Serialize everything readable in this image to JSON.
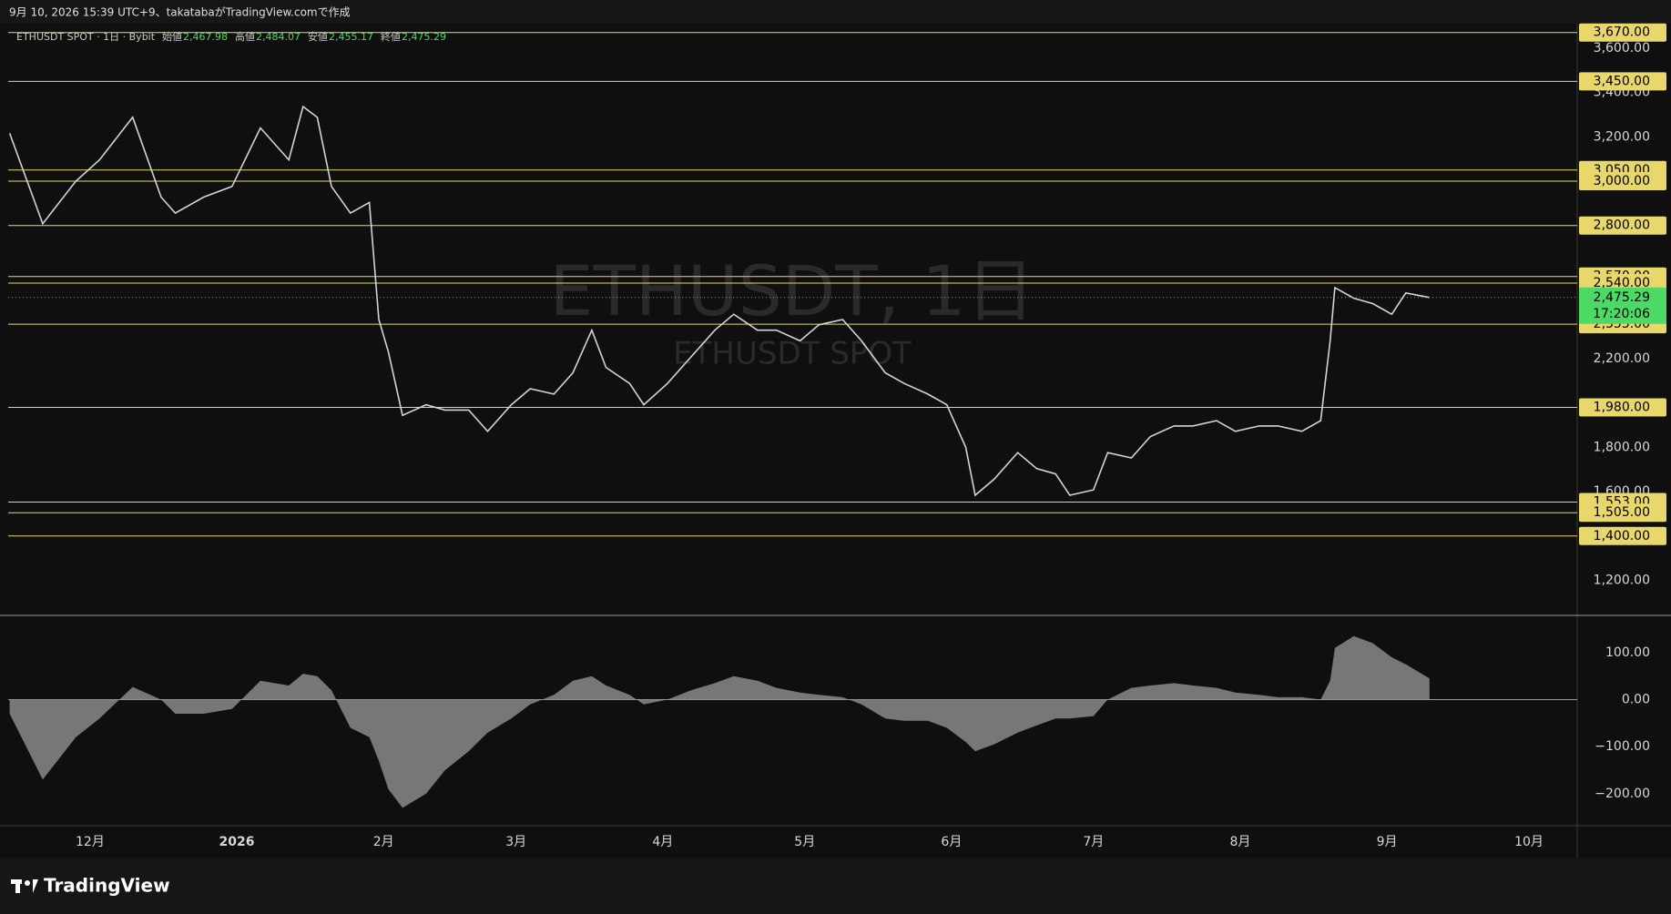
{
  "header": {
    "caption": "9月 10, 2026 15:39 UTC+9、takatabaがTradingView.comで作成"
  },
  "footer": {
    "logo_text": "TradingView"
  },
  "chart_data": [
    {
      "type": "line",
      "symbol": "ETHUSDT SPOT · 1日 · Bybit",
      "ohlc_names": [
        "始値",
        "高値",
        "安値",
        "終値"
      ],
      "ohlc_values": [
        2467.98,
        2484.07,
        2455.17,
        2475.29
      ],
      "ohlc_value_labels": [
        "2,467.98",
        "2,484.07",
        "2,455.17",
        "2,475.29"
      ],
      "watermark": "ETHUSDT, 1日",
      "watermark_sub": "ETHUSDT SPOT",
      "color": "#d1d4dc",
      "x": [
        -17,
        -10,
        -3,
        2,
        9,
        15,
        18,
        24,
        30,
        36,
        42,
        45,
        48,
        51,
        55,
        59,
        61,
        63,
        66,
        71,
        75,
        80,
        84,
        89,
        93,
        98,
        102,
        106,
        109,
        114,
        117,
        122,
        127,
        132,
        136,
        141,
        145,
        150,
        154,
        159,
        163,
        168,
        172,
        177,
        181,
        185,
        187,
        191,
        196,
        200,
        204,
        207,
        212,
        215,
        220,
        224,
        229,
        233,
        238,
        242,
        247,
        251,
        256,
        260,
        262,
        263,
        267,
        271,
        275,
        278,
        283
      ],
      "values": [
        3216,
        2808,
        3000,
        3096,
        3288,
        2928,
        2856,
        2928,
        2976,
        3240,
        3096,
        3336,
        3288,
        2976,
        2856,
        2904,
        2376,
        2232,
        1944,
        1992,
        1968,
        1968,
        1872,
        1992,
        2064,
        2040,
        2136,
        2328,
        2160,
        2088,
        1992,
        2088,
        2208,
        2328,
        2400,
        2328,
        2328,
        2280,
        2352,
        2376,
        2280,
        2136,
        2088,
        2040,
        1992,
        1800,
        1584,
        1656,
        1776,
        1704,
        1680,
        1584,
        1608,
        1776,
        1752,
        1848,
        1896,
        1896,
        1920,
        1872,
        1896,
        1896,
        1872,
        1920,
        2280,
        2520,
        2472,
        2448,
        2400,
        2496,
        2475.29
      ],
      "xlim": [
        -17.3,
        314.2
      ],
      "xticks": [
        {
          "value": 0,
          "label": "12月"
        },
        {
          "value": 31,
          "label": "2026"
        },
        {
          "value": 62,
          "label": "2月"
        },
        {
          "value": 90,
          "label": "3月"
        },
        {
          "value": 121,
          "label": "4月"
        },
        {
          "value": 151,
          "label": "5月"
        },
        {
          "value": 182,
          "label": "6月"
        },
        {
          "value": 212,
          "label": "7月"
        },
        {
          "value": 243,
          "label": "8月"
        },
        {
          "value": 274,
          "label": "9月"
        },
        {
          "value": 304,
          "label": "10月"
        }
      ],
      "ylim": [
        1042,
        3710
      ],
      "yticks": [
        {
          "value": 1200,
          "label": "1,200.00"
        },
        {
          "value": 1600,
          "label": "1,600.00"
        },
        {
          "value": 1800,
          "label": "1,800.00"
        },
        {
          "value": 2200,
          "label": "2,200.00"
        },
        {
          "value": 3200,
          "label": "3,200.00"
        },
        {
          "value": 3400,
          "label": "3,400.00"
        },
        {
          "value": 3600,
          "label": "3,600.00"
        }
      ],
      "level_color": "#e8d76a",
      "levels": [
        {
          "value": 3670,
          "label": "3,670.00"
        },
        {
          "value": 3450,
          "label": "3,450.00"
        },
        {
          "value": 3050,
          "label": "3,050.00"
        },
        {
          "value": 3000,
          "label": "3,000.00"
        },
        {
          "value": 2800,
          "label": "2,800.00"
        },
        {
          "value": 2570,
          "label": "2,570.00"
        },
        {
          "value": 2540,
          "label": "2,540.00"
        },
        {
          "value": 2355,
          "label": "2,355.00"
        },
        {
          "value": 1980,
          "label": "1,980.00"
        },
        {
          "value": 1553,
          "label": "1,553.00"
        },
        {
          "value": 1505,
          "label": "1,505.00"
        },
        {
          "value": 1400,
          "label": "1,400.00"
        }
      ],
      "last": {
        "value": 2475.29,
        "label": "2,475.29",
        "countdown": "17:20:06",
        "color": "#4cd964"
      }
    },
    {
      "type": "area",
      "color": "#8a8a8a",
      "x": [
        -17,
        -10,
        -3,
        2,
        9,
        15,
        18,
        24,
        30,
        36,
        42,
        45,
        48,
        51,
        55,
        59,
        61,
        63,
        66,
        71,
        75,
        80,
        84,
        89,
        93,
        98,
        102,
        106,
        109,
        114,
        117,
        122,
        127,
        132,
        136,
        141,
        145,
        150,
        154,
        159,
        163,
        168,
        172,
        177,
        181,
        185,
        187,
        191,
        196,
        200,
        204,
        207,
        212,
        215,
        220,
        224,
        229,
        233,
        238,
        242,
        247,
        251,
        256,
        260,
        262,
        263,
        267,
        271,
        275,
        278,
        283
      ],
      "values": [
        -30,
        -170,
        -80,
        -40,
        27,
        0,
        -30,
        -30,
        -20,
        40,
        30,
        55,
        50,
        20,
        -60,
        -80,
        -130,
        -190,
        -230,
        -200,
        -150,
        -110,
        -70,
        -40,
        -10,
        10,
        40,
        50,
        30,
        10,
        -10,
        0,
        20,
        35,
        50,
        40,
        25,
        15,
        10,
        5,
        -10,
        -40,
        -45,
        -45,
        -60,
        -90,
        -110,
        -95,
        -70,
        -55,
        -40,
        -40,
        -35,
        0,
        25,
        30,
        35,
        30,
        25,
        15,
        10,
        5,
        5,
        0,
        40,
        110,
        135,
        120,
        90,
        75,
        45
      ],
      "xlim": [
        -17.3,
        314.2
      ],
      "ylim": [
        -268,
        179
      ],
      "yticks": [
        {
          "value": 100,
          "label": "100.00"
        },
        {
          "value": 0,
          "label": "0.00"
        },
        {
          "value": -100,
          "label": "−100.00"
        },
        {
          "value": -200,
          "label": "−200.00"
        }
      ]
    }
  ]
}
